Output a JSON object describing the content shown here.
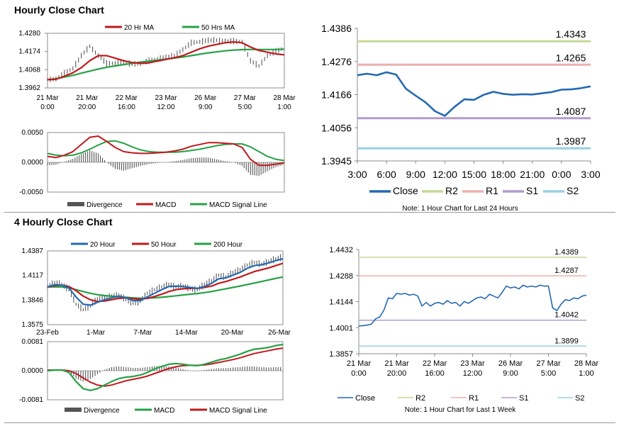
{
  "sections": {
    "hourly_title": "Hourly Close Chart",
    "four_hourly_title": "4 Hourly Close Chart"
  },
  "colors": {
    "close": "#2469b2",
    "ma_red": "#c0191d",
    "ma_green": "#27a046",
    "r2": "#c5d994",
    "r1": "#eeb0ae",
    "s1": "#b19ccd",
    "s2": "#98d0e1",
    "price_bar": "#4a4a4a",
    "divergence": "#555555"
  },
  "chart_data": [
    {
      "id": "hourly_price",
      "type": "line",
      "title": "",
      "legend": [
        "20 Hr MA",
        "50 Hrs MA"
      ],
      "y_ticks": [
        "1.4280",
        "1.4174",
        "1.4068",
        "1.3962"
      ],
      "ylim": [
        1.3962,
        1.428
      ],
      "x_labels": [
        [
          "21 Mar",
          "0:00"
        ],
        [
          "21 Mar",
          "20:00"
        ],
        [
          "22 Mar",
          "16:00"
        ],
        [
          "23 Mar",
          "12:00"
        ],
        [
          "26 Mar",
          "9:00"
        ],
        [
          "27 Mar",
          "5:00"
        ],
        [
          "28 Mar",
          "1:00"
        ]
      ],
      "x": [
        0,
        8,
        16,
        24,
        32,
        40,
        48,
        56,
        64,
        72,
        80,
        88,
        96,
        104,
        112,
        120,
        128,
        136,
        144,
        152,
        160,
        168,
        176,
        184,
        192,
        200,
        208,
        216,
        224
      ],
      "close": [
        1.401,
        1.4015,
        1.4048,
        1.4075,
        1.415,
        1.4205,
        1.415,
        1.4105,
        1.4105,
        1.411,
        1.41,
        1.4105,
        1.412,
        1.413,
        1.414,
        1.415,
        1.4185,
        1.4225,
        1.423,
        1.424,
        1.424,
        1.4235,
        1.4235,
        1.423,
        1.412,
        1.409,
        1.415,
        1.4175,
        1.4195
      ],
      "series": [
        {
          "name": "20 Hr MA",
          "values": [
            1.401,
            1.4012,
            1.403,
            1.405,
            1.408,
            1.412,
            1.415,
            1.415,
            1.4135,
            1.412,
            1.411,
            1.4105,
            1.4108,
            1.4118,
            1.4128,
            1.4138,
            1.415,
            1.417,
            1.419,
            1.4205,
            1.4215,
            1.4225,
            1.423,
            1.4225,
            1.42,
            1.418,
            1.417,
            1.416,
            1.4155
          ]
        },
        {
          "name": "50 Hrs MA",
          "values": [
            1.401,
            1.4015,
            1.4025,
            1.4035,
            1.4048,
            1.406,
            1.4072,
            1.4082,
            1.409,
            1.4098,
            1.4105,
            1.4112,
            1.4118,
            1.4124,
            1.413,
            1.4136,
            1.4142,
            1.415,
            1.4158,
            1.4166,
            1.4172,
            1.4178,
            1.4182,
            1.4185,
            1.4186,
            1.4186,
            1.4186,
            1.4186,
            1.4188
          ]
        }
      ]
    },
    {
      "id": "hourly_macd",
      "type": "line",
      "legend": [
        "Divergence",
        "MACD",
        "MACD Signal Line"
      ],
      "y_ticks": [
        "0.0050",
        "0.0000",
        "-0.0050"
      ],
      "ylim": [
        -0.005,
        0.005
      ],
      "x": [
        0,
        8,
        16,
        24,
        32,
        40,
        48,
        56,
        64,
        72,
        80,
        88,
        96,
        104,
        112,
        120,
        128,
        136,
        144,
        152,
        160,
        168,
        176,
        184,
        192,
        200,
        208,
        216,
        224
      ],
      "series": [
        {
          "name": "MACD",
          "values": [
            0.001,
            0.0008,
            0.0012,
            0.0018,
            0.003,
            0.0042,
            0.0044,
            0.0035,
            0.0025,
            0.0018,
            0.0016,
            0.0015,
            0.0015,
            0.0016,
            0.0017,
            0.0019,
            0.0022,
            0.0027,
            0.003,
            0.0033,
            0.0033,
            0.0032,
            0.0031,
            0.0025,
            0.0005,
            -0.0005,
            -0.0005,
            -0.0003,
            -0.0001
          ]
        },
        {
          "name": "MACD Signal Line",
          "values": [
            0.0015,
            0.0012,
            0.0011,
            0.0012,
            0.0016,
            0.0022,
            0.0029,
            0.0035,
            0.0036,
            0.0032,
            0.0026,
            0.0021,
            0.0018,
            0.0017,
            0.0017,
            0.0017,
            0.0018,
            0.002,
            0.0022,
            0.0025,
            0.0028,
            0.003,
            0.0031,
            0.0031,
            0.0026,
            0.0018,
            0.001,
            0.0005,
            0.0003
          ]
        },
        {
          "name": "Divergence",
          "values": [
            -0.0005,
            -0.0004,
            0.0001,
            0.0006,
            0.0014,
            0.002,
            0.0015,
            0.0,
            -0.0011,
            -0.0014,
            -0.001,
            -0.0006,
            -0.0003,
            -0.0001,
            0.0,
            0.0002,
            0.0004,
            0.0007,
            0.0008,
            0.0008,
            0.0005,
            0.0002,
            0.0,
            -0.0006,
            -0.0021,
            -0.0023,
            -0.0015,
            -0.0008,
            -0.0004
          ]
        }
      ]
    },
    {
      "id": "hourly_levels",
      "type": "line",
      "y_ticks": [
        "1.4386",
        "1.4276",
        "1.4166",
        "1.4056",
        "1.3945"
      ],
      "ylim": [
        1.3945,
        1.4386
      ],
      "x_labels": [
        "3:00",
        "6:00",
        "9:00",
        "12:00",
        "15:00",
        "18:00",
        "21:00",
        "0:00",
        "3:00"
      ],
      "levels": [
        {
          "name": "R2",
          "value": 1.4343,
          "label": "1.4343"
        },
        {
          "name": "R1",
          "value": 1.4265,
          "label": "1.4265"
        },
        {
          "name": "S1",
          "value": 1.4087,
          "label": "1.4087"
        },
        {
          "name": "S2",
          "value": 1.3987,
          "label": "1.3987"
        }
      ],
      "x": [
        0,
        1,
        2,
        3,
        4,
        5,
        6,
        7,
        8,
        9,
        10,
        11,
        12,
        13,
        14,
        15,
        16,
        17,
        18,
        19,
        20,
        21,
        22,
        23,
        24
      ],
      "close": [
        1.423,
        1.4235,
        1.423,
        1.424,
        1.4232,
        1.4185,
        1.4162,
        1.414,
        1.411,
        1.4095,
        1.4125,
        1.415,
        1.4148,
        1.4165,
        1.4175,
        1.4168,
        1.4165,
        1.4167,
        1.4166,
        1.417,
        1.4174,
        1.4182,
        1.4183,
        1.4187,
        1.4193
      ],
      "legend": [
        "Close",
        "R2",
        "R1",
        "S1",
        "S2"
      ],
      "note": "Note: 1 Hour Chart for Last 24 Hours"
    },
    {
      "id": "four_hourly_price",
      "type": "line",
      "legend": [
        "20 Hour",
        "50 Hour",
        "200 Hour"
      ],
      "y_ticks": [
        "1.4387",
        "1.4117",
        "1.3846",
        "1.3575"
      ],
      "ylim": [
        1.3575,
        1.4387
      ],
      "x_labels": [
        "23-Feb",
        "1-Mar",
        "7-Mar",
        "14-Mar",
        "20-Mar",
        "26-Mar"
      ],
      "x": [
        0,
        7,
        14,
        21,
        28,
        35,
        42,
        49,
        56,
        63,
        70,
        77,
        84,
        91,
        98,
        105,
        112,
        119,
        126,
        133,
        140,
        147,
        154,
        161,
        168,
        175,
        182,
        189,
        196,
        203,
        210,
        217,
        224,
        231
      ],
      "close": [
        1.399,
        1.404,
        1.402,
        1.396,
        1.38,
        1.374,
        1.378,
        1.386,
        1.387,
        1.389,
        1.39,
        1.385,
        1.381,
        1.383,
        1.392,
        1.396,
        1.399,
        1.402,
        1.399,
        1.4,
        1.397,
        1.396,
        1.402,
        1.406,
        1.412,
        1.41,
        1.415,
        1.418,
        1.423,
        1.426,
        1.424,
        1.427,
        1.43,
        1.432
      ],
      "series": [
        {
          "name": "20 Hour",
          "values": [
            1.399,
            1.4015,
            1.401,
            1.398,
            1.388,
            1.38,
            1.379,
            1.382,
            1.385,
            1.387,
            1.389,
            1.387,
            1.384,
            1.384,
            1.388,
            1.392,
            1.396,
            1.3995,
            1.4,
            1.3995,
            1.3985,
            1.3975,
            1.3995,
            1.403,
            1.408,
            1.409,
            1.412,
            1.415,
            1.4195,
            1.4225,
            1.4235,
            1.4255,
            1.428,
            1.43
          ]
        },
        {
          "name": "50 Hour",
          "values": [
            1.399,
            1.4005,
            1.401,
            1.3995,
            1.395,
            1.389,
            1.385,
            1.383,
            1.3835,
            1.385,
            1.3865,
            1.387,
            1.386,
            1.3855,
            1.3865,
            1.3885,
            1.391,
            1.394,
            1.396,
            1.397,
            1.3975,
            1.3975,
            1.3985,
            1.4,
            1.403,
            1.405,
            1.4075,
            1.41,
            1.413,
            1.416,
            1.418,
            1.42,
            1.4225,
            1.425
          ]
        },
        {
          "name": "200 Hour",
          "values": [
            1.399,
            1.3992,
            1.399,
            1.398,
            1.396,
            1.394,
            1.392,
            1.3905,
            1.3895,
            1.3888,
            1.3882,
            1.3876,
            1.387,
            1.3866,
            1.3866,
            1.387,
            1.3876,
            1.3884,
            1.3893,
            1.3902,
            1.391,
            1.3918,
            1.3928,
            1.394,
            1.3955,
            1.397,
            1.3985,
            1.4,
            1.4017,
            1.4033,
            1.405,
            1.4068,
            1.4085,
            1.41
          ]
        }
      ]
    },
    {
      "id": "four_hourly_macd",
      "type": "line",
      "legend": [
        "Divergence",
        "MACD",
        "MACD Signal Line"
      ],
      "y_ticks": [
        "0.0081",
        "0.0000",
        "-0.0081"
      ],
      "ylim": [
        -0.0081,
        0.0081
      ],
      "x": [
        0,
        7,
        14,
        21,
        28,
        35,
        42,
        49,
        56,
        63,
        70,
        77,
        84,
        91,
        98,
        105,
        112,
        119,
        126,
        133,
        140,
        147,
        154,
        161,
        168,
        175,
        182,
        189,
        196,
        203,
        210,
        217,
        224,
        231
      ],
      "series": [
        {
          "name": "MACD",
          "values": [
            0.0,
            0.0002,
            0.0002,
            -0.0005,
            -0.003,
            -0.005,
            -0.0055,
            -0.005,
            -0.004,
            -0.003,
            -0.0022,
            -0.0018,
            -0.0016,
            -0.0012,
            -0.0005,
            0.0005,
            0.0012,
            0.0018,
            0.002,
            0.0018,
            0.0015,
            0.0014,
            0.0018,
            0.0024,
            0.003,
            0.0034,
            0.004,
            0.0046,
            0.0054,
            0.006,
            0.0062,
            0.0065,
            0.007,
            0.0073
          ]
        },
        {
          "name": "MACD Signal Line",
          "values": [
            0.0002,
            0.0002,
            0.0002,
            0.0,
            -0.0008,
            -0.002,
            -0.0032,
            -0.004,
            -0.0043,
            -0.004,
            -0.0034,
            -0.0028,
            -0.0024,
            -0.002,
            -0.0015,
            -0.0008,
            -0.0001,
            0.0006,
            0.0011,
            0.0014,
            0.0015,
            0.0015,
            0.0016,
            0.0019,
            0.0023,
            0.0027,
            0.0031,
            0.0036,
            0.0042,
            0.0048,
            0.0052,
            0.0056,
            0.006,
            0.0063
          ]
        },
        {
          "name": "Divergence",
          "values": [
            -0.0002,
            0.0,
            0.0,
            -0.0005,
            -0.0022,
            -0.003,
            -0.0023,
            -0.001,
            0.0003,
            0.001,
            0.0012,
            0.001,
            0.0008,
            0.0008,
            0.001,
            0.0013,
            0.0013,
            0.0012,
            0.0009,
            0.0004,
            0.0,
            -0.0001,
            0.0002,
            0.0005,
            0.0007,
            0.0007,
            0.0009,
            0.001,
            0.0012,
            0.0012,
            0.001,
            0.0009,
            0.001,
            0.001
          ]
        }
      ]
    },
    {
      "id": "four_hourly_levels",
      "type": "line",
      "y_ticks": [
        "1.4432",
        "1.4288",
        "1.4144",
        "1.4001",
        "1.3857"
      ],
      "ylim": [
        1.3857,
        1.4432
      ],
      "x_labels": [
        [
          "21 Mar",
          "0:00"
        ],
        [
          "21 Mar",
          "20:00"
        ],
        [
          "22 Mar",
          "16:00"
        ],
        [
          "23 Mar",
          "12:00"
        ],
        [
          "26 Mar",
          "9:00"
        ],
        [
          "27 Mar",
          "5:00"
        ],
        [
          "28 Mar",
          "1:00"
        ]
      ],
      "levels": [
        {
          "name": "R2",
          "value": 1.4389,
          "label": "1.4389"
        },
        {
          "name": "R1",
          "value": 1.4287,
          "label": "1.4287"
        },
        {
          "name": "S1",
          "value": 1.4042,
          "label": "1.4042"
        },
        {
          "name": "S2",
          "value": 1.3899,
          "label": "1.3899"
        }
      ],
      "x": [
        0,
        6,
        12,
        18,
        24,
        30,
        36,
        42,
        48,
        54,
        60,
        66,
        72,
        78,
        84,
        90,
        96,
        102,
        108,
        114,
        120,
        126,
        132,
        138,
        144,
        150,
        156,
        162,
        168,
        174,
        180,
        186,
        192,
        198,
        204,
        210,
        216,
        222,
        228,
        234,
        240,
        246,
        252,
        258,
        264,
        270,
        276,
        282,
        288,
        294,
        300,
        306,
        312,
        318,
        324
      ],
      "close": [
        1.401,
        1.4012,
        1.4015,
        1.402,
        1.405,
        1.406,
        1.41,
        1.4165,
        1.416,
        1.419,
        1.4185,
        1.419,
        1.418,
        1.4185,
        1.4175,
        1.412,
        1.414,
        1.412,
        1.4135,
        1.414,
        1.413,
        1.415,
        1.4135,
        1.414,
        1.412,
        1.4145,
        1.4135,
        1.415,
        1.4165,
        1.417,
        1.416,
        1.4185,
        1.4175,
        1.4165,
        1.4195,
        1.423,
        1.422,
        1.4225,
        1.4215,
        1.4235,
        1.4225,
        1.423,
        1.4225,
        1.4235,
        1.423,
        1.423,
        1.411,
        1.4095,
        1.413,
        1.4155,
        1.415,
        1.4165,
        1.416,
        1.4175,
        1.418
      ],
      "legend": [
        "Close",
        "R2",
        "R1",
        "S1",
        "S2"
      ],
      "note": "Note: 1 Hour Chart for Last 1 Week"
    }
  ]
}
